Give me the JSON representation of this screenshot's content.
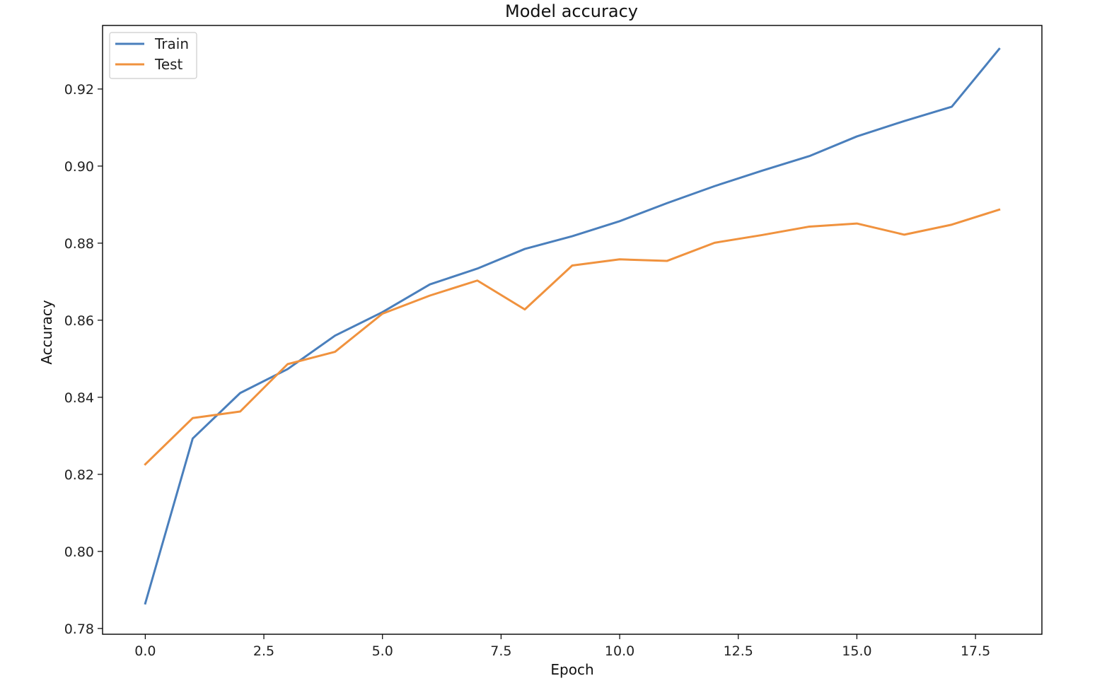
{
  "chart_data": {
    "type": "line",
    "title": "Model accuracy",
    "xlabel": "Epoch",
    "ylabel": "Accuracy",
    "x": [
      0,
      1,
      2,
      3,
      4,
      5,
      6,
      7,
      8,
      9,
      10,
      11,
      12,
      13,
      14,
      15,
      16,
      17,
      18
    ],
    "xlim": [
      -0.9,
      18.9
    ],
    "ylim": [
      0.7785,
      0.9365
    ],
    "xticks": [
      0.0,
      2.5,
      5.0,
      7.5,
      10.0,
      12.5,
      15.0,
      17.5
    ],
    "xtick_labels": [
      "0.0",
      "2.5",
      "5.0",
      "7.5",
      "10.0",
      "12.5",
      "15.0",
      "17.5"
    ],
    "yticks": [
      0.78,
      0.8,
      0.82,
      0.84,
      0.86,
      0.88,
      0.9,
      0.92
    ],
    "ytick_labels": [
      "0.78",
      "0.80",
      "0.82",
      "0.84",
      "0.86",
      "0.88",
      "0.90",
      "0.92"
    ],
    "grid": false,
    "legend_position": "top-left",
    "series": [
      {
        "name": "Train",
        "color": "#4a7fbc",
        "values": [
          0.7865,
          0.8293,
          0.8411,
          0.8473,
          0.856,
          0.8621,
          0.8693,
          0.8734,
          0.8785,
          0.8818,
          0.8857,
          0.8904,
          0.8948,
          0.8988,
          0.9026,
          0.9077,
          0.9117,
          0.9154,
          0.9304
        ]
      },
      {
        "name": "Test",
        "color": "#f0923e",
        "values": [
          0.8226,
          0.8346,
          0.8363,
          0.8486,
          0.8518,
          0.8617,
          0.8664,
          0.8703,
          0.8628,
          0.8742,
          0.8758,
          0.8754,
          0.8801,
          0.8821,
          0.8843,
          0.8851,
          0.8822,
          0.8848,
          0.8887
        ]
      }
    ]
  }
}
